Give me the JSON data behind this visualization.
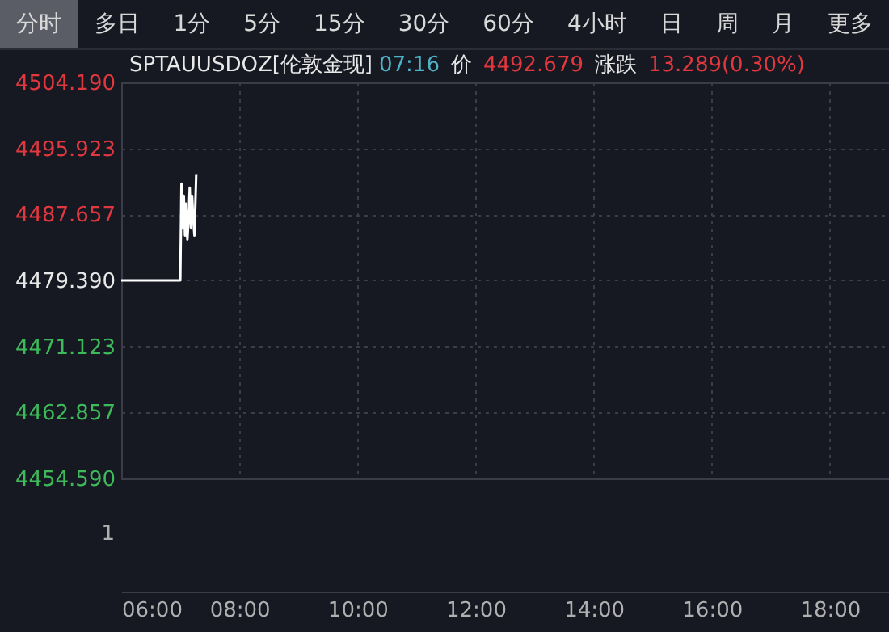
{
  "chart_data": [
    {
      "type": "other",
      "annotations": [
        "分时",
        "多日",
        "1分",
        "5分",
        "15分",
        "30分",
        "60分",
        "4小时",
        "日",
        "周",
        "月",
        "更多"
      ]
    },
    {
      "type": "line",
      "title": "SPTAUUSDOZ[伦敦金现]",
      "annotations": [
        "07:16",
        "价",
        "4492.679",
        "涨跌",
        "13.289(0.30%)"
      ],
      "x": [
        6,
        7.0,
        7.02,
        7.04,
        7.06,
        7.08,
        7.1,
        7.12,
        7.14,
        7.16,
        7.18,
        7.2,
        7.22,
        7.24,
        7.27
      ],
      "series": [
        {
          "color": "#ffffff",
          "values": [
            4479.4,
            4479.4,
            4491.5,
            4486,
            4490,
            4485,
            4489,
            4484.5,
            4487,
            4491,
            4486,
            4490,
            4487,
            4485,
            4492.7
          ]
        }
      ],
      "xlim": [
        6,
        19
      ],
      "xticks": [
        {
          "value": 6,
          "label": "06:00"
        },
        {
          "value": 8,
          "label": "08:00"
        },
        {
          "value": 10,
          "label": "10:00"
        },
        {
          "value": 12,
          "label": "12:00"
        },
        {
          "value": 14,
          "label": "14:00"
        },
        {
          "value": 16,
          "label": "16:00"
        },
        {
          "value": 18,
          "label": "18:00"
        }
      ],
      "ylim": [
        4454.59,
        4504.19
      ],
      "yticks": [
        {
          "value": 4504.19,
          "label": "4504.190"
        },
        {
          "value": 4495.923,
          "label": "4495.923"
        },
        {
          "value": 4487.657,
          "label": "4487.657"
        },
        {
          "value": 4479.39,
          "label": "4479.390"
        },
        {
          "value": 4471.123,
          "label": "4471.123"
        },
        {
          "value": 4462.857,
          "label": "4462.857"
        },
        {
          "value": 4454.59,
          "label": "4454.590"
        }
      ],
      "grid": true,
      "marker": "none",
      "line_style": "solid"
    },
    {
      "type": "other",
      "annotations": [
        "1"
      ]
    }
  ]
}
